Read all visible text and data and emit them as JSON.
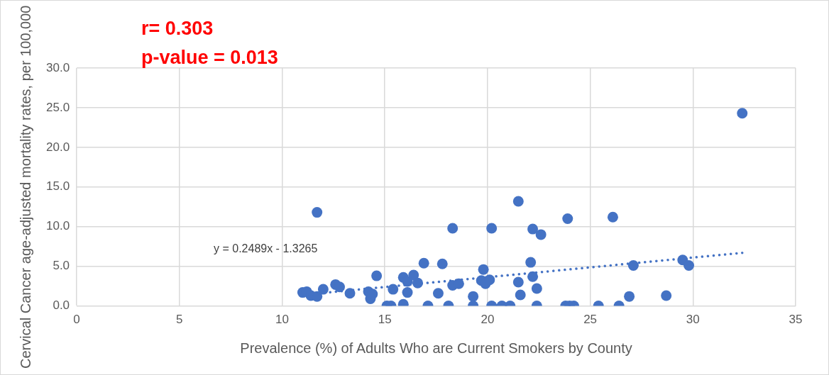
{
  "chart_data": {
    "type": "scatter",
    "xlabel": "Prevalence (%) of Adults Who are Current Smokers by County",
    "ylabel": "Cervical Cancer age-adjusted mortality rates, per 100,000",
    "annotations": [
      "r= 0.303",
      "p-value = 0.013",
      "y = 0.2489x - 1.3265"
    ],
    "xlim": [
      0,
      35
    ],
    "xticks": [
      0,
      5,
      10,
      15,
      20,
      25,
      30,
      35
    ],
    "ylim": [
      0,
      30
    ],
    "yticks": [
      {
        "value": 0,
        "label": "0.0"
      },
      {
        "value": 5,
        "label": "5.0"
      },
      {
        "value": 10,
        "label": "10.0"
      },
      {
        "value": 15,
        "label": "15.0"
      },
      {
        "value": 20,
        "label": "20.0"
      },
      {
        "value": 25,
        "label": "25.0"
      },
      {
        "value": 30,
        "label": "30.0"
      }
    ],
    "grid": true,
    "legend": false,
    "marker": "circle",
    "series": [
      {
        "type": "scatter",
        "color": "#4472c4",
        "x": [
          11.0,
          11.2,
          11.4,
          11.7,
          12.0,
          11.7,
          12.6,
          12.8,
          13.3,
          14.2,
          14.3,
          14.4,
          14.6,
          15.1,
          15.3,
          15.4,
          15.9,
          15.9,
          16.1,
          16.1,
          16.4,
          16.6,
          16.9,
          17.1,
          17.6,
          17.8,
          18.1,
          18.3,
          18.3,
          18.6,
          19.3,
          19.3,
          19.8,
          19.7,
          19.9,
          20.1,
          20.2,
          20.2,
          20.7,
          21.1,
          21.5,
          21.5,
          21.6,
          22.1,
          22.2,
          22.6,
          22.2,
          22.4,
          22.4,
          23.8,
          24.0,
          24.2,
          23.9,
          26.1,
          25.4,
          26.4,
          26.9,
          27.1,
          28.7,
          29.5,
          29.8,
          32.4
        ],
        "values": [
          1.7,
          1.8,
          1.3,
          1.2,
          2.1,
          11.8,
          2.7,
          2.4,
          1.6,
          1.8,
          0.9,
          1.5,
          3.8,
          0.0,
          0.0,
          2.1,
          0.2,
          3.6,
          1.7,
          3.1,
          3.9,
          2.9,
          5.4,
          0.0,
          1.6,
          5.3,
          0.0,
          9.8,
          2.6,
          2.8,
          1.2,
          0.0,
          4.6,
          3.2,
          2.8,
          3.3,
          9.8,
          0.0,
          0.0,
          0.0,
          13.2,
          3.0,
          1.4,
          5.5,
          9.7,
          9.0,
          3.7,
          2.2,
          0.0,
          0.0,
          0.0,
          0.0,
          11.0,
          11.2,
          0.0,
          0.0,
          1.2,
          5.1,
          1.3,
          5.8,
          5.1,
          24.3
        ]
      },
      {
        "type": "line",
        "color": "#4472c4",
        "line_style": "dotted",
        "marker": "none",
        "x": [
          11.0,
          32.4
        ],
        "values": [
          1.4,
          6.7
        ]
      }
    ]
  }
}
